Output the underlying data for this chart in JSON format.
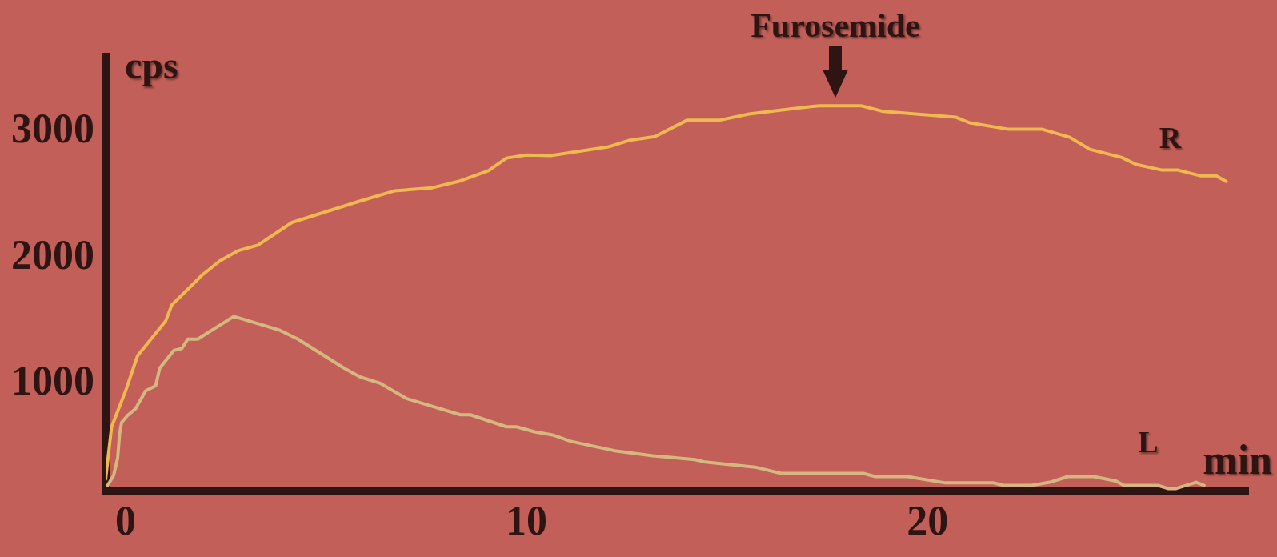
{
  "chart_data": {
    "type": "line",
    "xlabel": "min",
    "ylabel": "cps",
    "xlim": [
      -0.5,
      28
    ],
    "ylim": [
      150,
      3600
    ],
    "xticks": [
      0,
      10,
      20
    ],
    "yticks": [
      1000,
      2000,
      3000
    ],
    "grid": false,
    "legend": false,
    "marker": "none",
    "line_style": "solid",
    "annotations": [
      {
        "text": "Furosemide",
        "x": 17.7,
        "y": 3205
      }
    ],
    "series": [
      {
        "name": "R",
        "color": "#f0b850",
        "x": [
          -0.5,
          -0.35,
          0,
          0.3,
          1.0,
          1.15,
          1.55,
          1.9,
          2.35,
          2.8,
          3.3,
          4.15,
          5.1,
          5.8,
          6.7,
          7.65,
          8.3,
          9.05,
          9.5,
          10.0,
          10.6,
          12.05,
          12.55,
          13.2,
          14.0,
          14.8,
          15.55,
          16.7,
          17.3,
          18.35,
          18.9,
          20.7,
          21.05,
          22.0,
          22.85,
          23.55,
          24.05,
          24.85,
          25.2,
          25.85,
          26.25,
          26.8,
          27.2,
          27.45
        ],
        "values": [
          244,
          660,
          945,
          1225,
          1500,
          1625,
          1750,
          1860,
          1975,
          2055,
          2100,
          2280,
          2375,
          2445,
          2530,
          2555,
          2605,
          2690,
          2790,
          2815,
          2810,
          2880,
          2930,
          2960,
          3090,
          3090,
          3140,
          3185,
          3205,
          3205,
          3160,
          3115,
          3070,
          3020,
          3020,
          2955,
          2860,
          2795,
          2740,
          2695,
          2695,
          2650,
          2650,
          2605
        ]
      },
      {
        "name": "L",
        "color": "#d4b880",
        "x": [
          -0.45,
          -0.3,
          -0.2,
          -0.15,
          -0.1,
          0.05,
          0.25,
          0.5,
          0.75,
          0.85,
          1.2,
          1.4,
          1.55,
          1.8,
          2.7,
          3.85,
          4.3,
          5.45,
          5.85,
          6.35,
          7.0,
          8.35,
          8.6,
          9.5,
          9.75,
          10.2,
          10.65,
          11.1,
          12.2,
          13.15,
          14.2,
          14.45,
          15.7,
          16.35,
          18.4,
          18.7,
          19.5,
          20.45,
          21.65,
          21.9,
          22.6,
          23.05,
          23.5,
          24.15,
          24.7,
          24.9,
          25.75,
          26.0,
          26.2,
          26.7,
          26.9
        ],
        "values": [
          195,
          275,
          410,
          605,
          695,
          750,
          805,
          945,
          985,
          1125,
          1265,
          1280,
          1355,
          1355,
          1535,
          1425,
          1355,
          1125,
          1055,
          1005,
          885,
          755,
          755,
          660,
          660,
          620,
          595,
          545,
          470,
          430,
          400,
          380,
          340,
          290,
          290,
          265,
          265,
          215,
          215,
          195,
          195,
          220,
          265,
          265,
          230,
          195,
          195,
          170,
          170,
          220,
          195
        ]
      }
    ]
  }
}
